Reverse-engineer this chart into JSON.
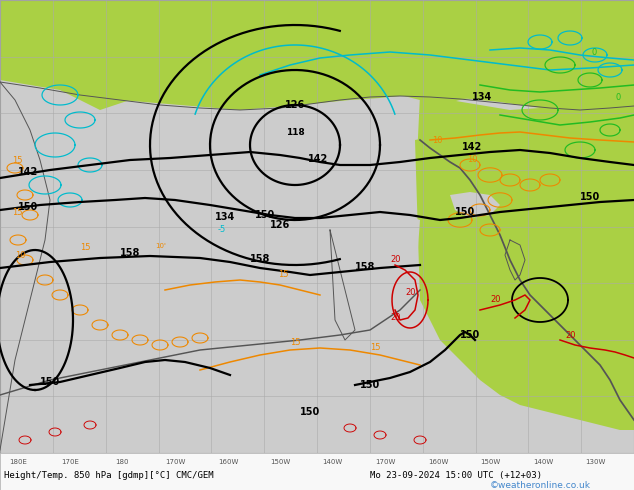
{
  "footer_text": "Height/Temp. 850 hPa [gdmp][°C] CMC/GEM",
  "footer_date": "Mo 23-09-2024 15:00 UTC (+12+03)",
  "watermark": "©weatheronline.co.uk",
  "fig_width": 6.34,
  "fig_height": 4.9,
  "dpi": 100,
  "bg_ocean": "#d0d0d0",
  "bg_land_bright": "#aadd44",
  "bg_land_mid": "#bbdd88",
  "footer_bg": "#f0f0f0",
  "black_lw": 1.6,
  "cyan_lw": 1.1,
  "orange_lw": 1.1,
  "red_lw": 1.1,
  "green_lw": 1.1,
  "grid_color": "#aaaaaa",
  "grid_lw": 0.4,
  "coast_color": "#555555",
  "coast_lw": 0.7
}
